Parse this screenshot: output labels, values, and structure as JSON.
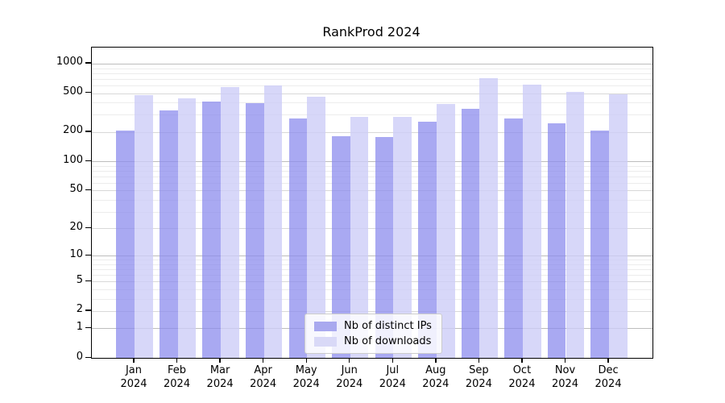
{
  "title": "RankProd 2024",
  "legend": {
    "items": [
      {
        "label": "Nb of distinct IPs",
        "color": "#a9a9ef"
      },
      {
        "label": "Nb of downloads",
        "color": "#d9d9f7"
      }
    ]
  },
  "chart_data": {
    "type": "bar",
    "title": "RankProd 2024",
    "categories": [
      "Jan",
      "Feb",
      "Mar",
      "Apr",
      "May",
      "Jun",
      "Jul",
      "Aug",
      "Sep",
      "Oct",
      "Nov",
      "Dec"
    ],
    "year": "2024",
    "series": [
      {
        "name": "Nb of distinct IPs",
        "color": "rgba(140,140,238,0.75)",
        "values": [
          207,
          330,
          412,
          391,
          277,
          182,
          176,
          253,
          347,
          276,
          245,
          206
        ]
      },
      {
        "name": "Nb of downloads",
        "color": "rgba(204,204,247,0.78)",
        "values": [
          480,
          438,
          577,
          602,
          459,
          287,
          288,
          389,
          706,
          606,
          511,
          482
        ]
      }
    ],
    "y_ticks": [
      0,
      1,
      2,
      5,
      10,
      20,
      50,
      100,
      200,
      500,
      1000
    ],
    "y_scale": "log1p",
    "ylim": [
      0,
      1459
    ],
    "xlabel": "",
    "ylabel": "",
    "grid": true,
    "legend_position": "bottom-center"
  }
}
